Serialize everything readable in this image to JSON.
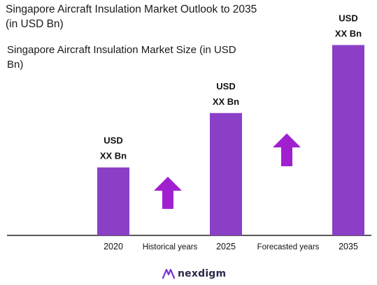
{
  "title_lines": [
    "Singapore Aircraft Insulation Market Outlook to 2035",
    "(in USD Bn)"
  ],
  "subtitle_lines": [
    "Singapore Aircraft Insulation Market Size (in USD",
    "Bn)"
  ],
  "logo": {
    "text": "nexdigm",
    "icon": "nexdigm-logo-icon"
  },
  "colors": {
    "bar": "#8b3fc6",
    "arrow": "#a020d0",
    "axis": "#222222",
    "text": "#111111"
  },
  "chart_data": {
    "type": "bar",
    "categories": [
      "2020",
      "2025",
      "2035"
    ],
    "values": [
      1.0,
      1.8,
      2.8
    ],
    "value_note": "relative heights; actual values not disclosed",
    "data_labels": [
      [
        "USD",
        "XX Bn"
      ],
      [
        "USD",
        "XX Bn"
      ],
      [
        "USD",
        "XX Bn"
      ]
    ],
    "period_labels": [
      "Historical years",
      "Forecasted years"
    ],
    "title": "Singapore Aircraft Insulation Market Size (in USD Bn)",
    "xlabel": "",
    "ylabel": "",
    "ylim": [
      0,
      3.0
    ],
    "grid": false,
    "legend": "none",
    "annotations": [
      "up-arrow between 2020 and 2025",
      "up-arrow between 2025 and 2035"
    ]
  }
}
